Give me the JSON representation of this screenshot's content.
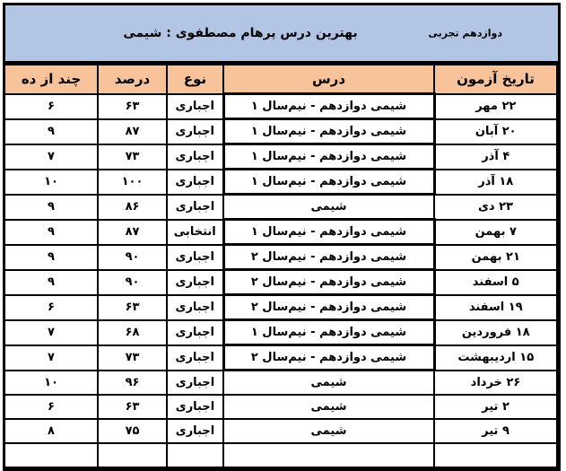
{
  "banner": {
    "title": "بهترین درس پرهام مصطفوی : شیمی",
    "grade": "دوازدهم تجربی"
  },
  "table": {
    "headers": [
      "تاریخ آزمون",
      "درس",
      "نوع",
      "درصد",
      "چند از ده"
    ],
    "rows": [
      {
        "date": "۲۲ مهر",
        "lesson": "شیمی دوازدهم - نیم‌سال ۱",
        "type": "اجباری",
        "percent": "۶۳",
        "out_of_ten": "۶",
        "heavy_border": true
      },
      {
        "date": "۲۰ آبان",
        "lesson": "شیمی دوازدهم - نیم‌سال ۱",
        "type": "اجباری",
        "percent": "۸۷",
        "out_of_ten": "۹",
        "heavy_border": true
      },
      {
        "date": "۴ آذر",
        "lesson": "شیمی دوازدهم - نیم‌سال ۱",
        "type": "اجباری",
        "percent": "۷۳",
        "out_of_ten": "۷",
        "heavy_border": true
      },
      {
        "date": "۱۸ آذر",
        "lesson": "شیمی دوازدهم - نیم‌سال ۱",
        "type": "اجباری",
        "percent": "۱۰۰",
        "out_of_ten": "۱۰",
        "heavy_border": true
      },
      {
        "date": "۲۳ دی",
        "lesson": "شیمی",
        "type": "اجباری",
        "percent": "۸۶",
        "out_of_ten": "۹",
        "heavy_border": false
      },
      {
        "date": "۷ بهمن",
        "lesson": "شیمی دوازدهم - نیم‌سال ۱",
        "type": "انتخابی",
        "percent": "۸۷",
        "out_of_ten": "۹",
        "heavy_border": true
      },
      {
        "date": "۲۱ بهمن",
        "lesson": "شیمی دوازدهم - نیم‌سال ۲",
        "type": "اجباری",
        "percent": "۹۰",
        "out_of_ten": "۹",
        "heavy_border": true
      },
      {
        "date": "۵ اسفند",
        "lesson": "شیمی دوازدهم - نیم‌سال ۲",
        "type": "اجباری",
        "percent": "۹۰",
        "out_of_ten": "۹",
        "heavy_border": true
      },
      {
        "date": "۱۹ اسفند",
        "lesson": "شیمی دوازدهم - نیم‌سال ۲",
        "type": "اجباری",
        "percent": "۶۳",
        "out_of_ten": "۶",
        "heavy_border": true
      },
      {
        "date": "۱۸ فروردین",
        "lesson": "شیمی دوازدهم - نیم‌سال ۱",
        "type": "اجباری",
        "percent": "۶۸",
        "out_of_ten": "۷",
        "heavy_border": true
      },
      {
        "date": "۱۵ اردیبهشت",
        "lesson": "شیمی دوازدهم - نیم‌سال ۲",
        "type": "اجباری",
        "percent": "۷۳",
        "out_of_ten": "۷",
        "heavy_border": true
      },
      {
        "date": "۲۶ خرداد",
        "lesson": "شیمی",
        "type": "اجباری",
        "percent": "۹۶",
        "out_of_ten": "۱۰",
        "heavy_border": false
      },
      {
        "date": "۲ تیر",
        "lesson": "شیمی",
        "type": "اجباری",
        "percent": "۶۳",
        "out_of_ten": "۶",
        "heavy_border": false
      },
      {
        "date": "۹ تیر",
        "lesson": "شیمی",
        "type": "اجباری",
        "percent": "۷۵",
        "out_of_ten": "۸",
        "heavy_border": false
      },
      {
        "date": "",
        "lesson": "",
        "type": "",
        "percent": "",
        "out_of_ten": "",
        "heavy_border": false
      }
    ]
  },
  "colors": {
    "banner_bg": "#b2c5e4",
    "header_bg": "#f8c29a",
    "border": "#000000"
  }
}
